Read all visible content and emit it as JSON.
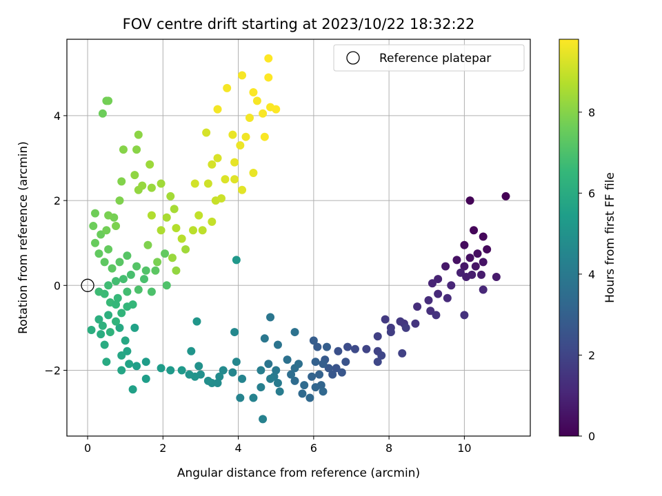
{
  "chart_data": {
    "type": "scatter",
    "title": "FOV centre drift starting at 2023/10/22 18:32:22",
    "xlabel": "Angular distance from reference (arcmin)",
    "ylabel": "Rotation from reference (arcmin)",
    "xlim": [
      -0.55,
      11.75
    ],
    "ylim": [
      -3.55,
      5.8
    ],
    "xticks": [
      "0",
      "2",
      "4",
      "6",
      "8",
      "10"
    ],
    "yticks": [
      "−2",
      "0",
      "2",
      "4"
    ],
    "grid": true,
    "legend": {
      "placement": "top-right",
      "entries": [
        "Reference platepar"
      ]
    },
    "reference_point": {
      "x": 0,
      "y": 0
    },
    "colorbar": {
      "label": "Hours from first FF file",
      "colormap": "viridis",
      "range": [
        0,
        9.8
      ],
      "ticks": [
        "0",
        "2",
        "4",
        "6",
        "8"
      ]
    },
    "series": [
      {
        "points": [
          [
            11.1,
            2.1,
            0.02
          ],
          [
            10.15,
            2.0,
            0.1
          ],
          [
            10.25,
            1.3,
            0.15
          ],
          [
            10.5,
            1.15,
            0.2
          ],
          [
            10.6,
            0.85,
            0.25
          ],
          [
            10.0,
            0.95,
            0.3
          ],
          [
            10.35,
            0.75,
            0.35
          ],
          [
            10.15,
            0.65,
            0.4
          ],
          [
            9.8,
            0.6,
            0.45
          ],
          [
            10.5,
            0.55,
            0.5
          ],
          [
            10.3,
            0.45,
            0.55
          ],
          [
            10.0,
            0.45,
            0.6
          ],
          [
            9.5,
            0.45,
            0.65
          ],
          [
            10.85,
            0.2,
            0.7
          ],
          [
            10.45,
            0.25,
            0.75
          ],
          [
            10.2,
            0.25,
            0.8
          ],
          [
            10.05,
            0.2,
            0.85
          ],
          [
            9.9,
            0.3,
            0.9
          ],
          [
            9.3,
            0.15,
            0.95
          ],
          [
            9.15,
            0.05,
            1.0
          ],
          [
            9.65,
            0.0,
            1.05
          ],
          [
            10.5,
            -0.1,
            1.1
          ],
          [
            9.3,
            -0.2,
            1.15
          ],
          [
            9.55,
            -0.3,
            1.2
          ],
          [
            9.05,
            -0.35,
            1.25
          ],
          [
            8.75,
            -0.5,
            1.3
          ],
          [
            9.1,
            -0.6,
            1.35
          ],
          [
            10.0,
            -0.7,
            1.4
          ],
          [
            9.25,
            -0.7,
            1.45
          ],
          [
            8.7,
            -0.9,
            1.5
          ],
          [
            8.4,
            -0.9,
            1.55
          ],
          [
            8.3,
            -0.85,
            1.6
          ],
          [
            7.9,
            -0.8,
            1.65
          ],
          [
            8.05,
            -1.0,
            1.7
          ],
          [
            8.45,
            -1.0,
            1.75
          ],
          [
            8.05,
            -1.1,
            1.8
          ],
          [
            7.7,
            -1.2,
            1.85
          ],
          [
            8.35,
            -1.6,
            1.9
          ],
          [
            7.7,
            -1.55,
            1.95
          ],
          [
            7.4,
            -1.5,
            2.0
          ],
          [
            7.8,
            -1.65,
            2.05
          ],
          [
            7.7,
            -1.8,
            2.1
          ],
          [
            7.1,
            -1.5,
            2.2
          ],
          [
            6.9,
            -1.45,
            2.3
          ],
          [
            6.65,
            -1.55,
            2.4
          ],
          [
            6.85,
            -1.8,
            2.5
          ],
          [
            6.6,
            -1.95,
            2.55
          ],
          [
            6.75,
            -2.05,
            2.6
          ],
          [
            6.5,
            -2.1,
            2.65
          ],
          [
            6.4,
            -1.95,
            2.7
          ],
          [
            6.3,
            -1.75,
            2.75
          ],
          [
            6.1,
            -1.45,
            2.8
          ],
          [
            6.0,
            -1.3,
            2.85
          ],
          [
            6.35,
            -1.45,
            2.9
          ],
          [
            6.25,
            -1.85,
            2.95
          ],
          [
            6.05,
            -1.8,
            3.0
          ],
          [
            6.15,
            -2.1,
            3.05
          ],
          [
            5.95,
            -2.15,
            3.1
          ],
          [
            6.2,
            -2.35,
            3.15
          ],
          [
            6.05,
            -2.4,
            3.2
          ],
          [
            6.25,
            -2.5,
            3.25
          ],
          [
            5.9,
            -2.65,
            3.3
          ],
          [
            5.7,
            -2.55,
            3.35
          ],
          [
            5.75,
            -2.35,
            3.4
          ],
          [
            5.5,
            -2.25,
            3.45
          ],
          [
            5.4,
            -2.1,
            3.5
          ],
          [
            5.5,
            -1.95,
            3.55
          ],
          [
            5.6,
            -1.85,
            3.6
          ],
          [
            5.3,
            -1.75,
            3.65
          ],
          [
            5.5,
            -1.1,
            3.7
          ],
          [
            5.05,
            -1.4,
            3.75
          ],
          [
            4.8,
            -1.85,
            3.8
          ],
          [
            4.85,
            -0.75,
            3.85
          ],
          [
            4.7,
            -1.25,
            3.9
          ],
          [
            5.0,
            -2.0,
            3.95
          ],
          [
            4.95,
            -2.15,
            4.0
          ],
          [
            5.05,
            -2.3,
            4.05
          ],
          [
            5.1,
            -2.5,
            4.1
          ],
          [
            4.85,
            -2.2,
            4.15
          ],
          [
            4.6,
            -2.0,
            4.2
          ],
          [
            4.6,
            -2.4,
            4.25
          ],
          [
            4.65,
            -3.15,
            4.3
          ],
          [
            4.4,
            -2.65,
            4.35
          ],
          [
            4.05,
            -2.65,
            4.4
          ],
          [
            4.1,
            -2.2,
            4.45
          ],
          [
            3.85,
            -2.05,
            4.5
          ],
          [
            3.95,
            -1.8,
            4.55
          ],
          [
            3.9,
            -1.1,
            4.6
          ],
          [
            3.6,
            -2.0,
            4.65
          ],
          [
            3.5,
            -2.15,
            4.7
          ],
          [
            3.45,
            -2.3,
            4.75
          ],
          [
            3.3,
            -2.3,
            4.8
          ],
          [
            3.2,
            -2.25,
            4.85
          ],
          [
            3.0,
            -2.1,
            4.9
          ],
          [
            2.95,
            -1.9,
            4.95
          ],
          [
            2.85,
            -2.15,
            5.0
          ],
          [
            2.7,
            -2.1,
            5.05
          ],
          [
            2.75,
            -1.55,
            5.1
          ],
          [
            2.9,
            -0.85,
            5.15
          ],
          [
            3.95,
            0.6,
            5.2
          ],
          [
            2.5,
            -2.0,
            5.25
          ],
          [
            2.2,
            -2.0,
            5.3
          ],
          [
            1.95,
            -1.95,
            5.35
          ],
          [
            1.55,
            -1.8,
            5.4
          ],
          [
            1.55,
            -2.2,
            5.45
          ],
          [
            1.3,
            -1.9,
            5.5
          ],
          [
            1.2,
            -2.45,
            5.55
          ],
          [
            1.25,
            -1.0,
            5.6
          ],
          [
            1.1,
            -1.85,
            5.65
          ],
          [
            1.05,
            -1.55,
            5.7
          ],
          [
            0.9,
            -2.0,
            5.75
          ],
          [
            0.9,
            -1.65,
            5.8
          ],
          [
            1.0,
            -1.3,
            5.85
          ],
          [
            0.85,
            -1.0,
            5.9
          ],
          [
            0.5,
            -1.8,
            5.95
          ],
          [
            0.45,
            -1.4,
            6.0
          ],
          [
            0.35,
            -1.15,
            6.05
          ],
          [
            0.1,
            -1.05,
            6.1
          ],
          [
            0.3,
            -0.8,
            6.15
          ],
          [
            0.55,
            -0.7,
            6.2
          ],
          [
            0.4,
            -0.95,
            6.25
          ],
          [
            0.6,
            -1.1,
            6.3
          ],
          [
            0.75,
            -0.85,
            6.35
          ],
          [
            0.9,
            -0.65,
            6.4
          ],
          [
            1.05,
            -0.5,
            6.45
          ],
          [
            1.2,
            -0.45,
            6.5
          ],
          [
            0.8,
            -0.3,
            6.55
          ],
          [
            0.6,
            -0.4,
            6.6
          ],
          [
            0.45,
            -0.2,
            6.65
          ],
          [
            0.3,
            -0.15,
            6.7
          ],
          [
            0.55,
            0.0,
            6.75
          ],
          [
            0.75,
            0.1,
            6.8
          ],
          [
            0.95,
            0.15,
            6.85
          ],
          [
            1.15,
            0.25,
            6.9
          ],
          [
            1.5,
            0.15,
            6.95
          ],
          [
            1.7,
            -0.15,
            7.0
          ],
          [
            2.1,
            0.0,
            7.05
          ],
          [
            1.55,
            0.35,
            7.1
          ],
          [
            1.3,
            0.45,
            7.15
          ],
          [
            1.05,
            0.7,
            7.2
          ],
          [
            0.85,
            0.55,
            7.25
          ],
          [
            0.65,
            0.4,
            7.3
          ],
          [
            0.45,
            0.55,
            7.35
          ],
          [
            0.3,
            0.75,
            7.4
          ],
          [
            0.55,
            0.85,
            7.45
          ],
          [
            0.2,
            1.0,
            7.5
          ],
          [
            0.35,
            1.2,
            7.55
          ],
          [
            0.15,
            1.4,
            7.6
          ],
          [
            0.2,
            1.7,
            7.65
          ],
          [
            0.5,
            1.3,
            7.7
          ],
          [
            0.7,
            1.6,
            7.75
          ],
          [
            0.55,
            1.65,
            7.8
          ],
          [
            0.75,
            1.4,
            7.85
          ],
          [
            0.85,
            2.0,
            7.9
          ],
          [
            0.9,
            2.45,
            7.95
          ],
          [
            0.95,
            3.2,
            8.0
          ],
          [
            1.3,
            3.2,
            8.05
          ],
          [
            1.35,
            3.55,
            8.1
          ],
          [
            1.25,
            2.6,
            8.15
          ],
          [
            1.35,
            2.25,
            8.2
          ],
          [
            1.45,
            2.35,
            8.25
          ],
          [
            1.7,
            2.3,
            8.3
          ],
          [
            1.65,
            2.85,
            8.35
          ],
          [
            1.95,
            2.4,
            8.4
          ],
          [
            2.2,
            2.1,
            8.45
          ],
          [
            2.3,
            1.8,
            8.5
          ],
          [
            2.1,
            1.6,
            8.55
          ],
          [
            1.95,
            1.3,
            8.6
          ],
          [
            1.7,
            1.65,
            8.65
          ],
          [
            2.35,
            1.35,
            8.7
          ],
          [
            2.5,
            1.1,
            8.75
          ],
          [
            2.8,
            1.3,
            8.8
          ],
          [
            3.05,
            1.3,
            8.85
          ],
          [
            2.95,
            1.65,
            8.9
          ],
          [
            3.3,
            1.5,
            8.95
          ],
          [
            3.4,
            2.0,
            9.0
          ],
          [
            3.55,
            2.05,
            9.05
          ],
          [
            3.2,
            2.4,
            9.1
          ],
          [
            2.85,
            2.4,
            9.15
          ],
          [
            3.3,
            2.85,
            9.2
          ],
          [
            3.45,
            3.0,
            9.25
          ],
          [
            3.65,
            2.5,
            9.3
          ],
          [
            3.9,
            2.5,
            9.35
          ],
          [
            4.1,
            2.25,
            9.4
          ],
          [
            3.9,
            2.9,
            9.45
          ],
          [
            3.85,
            3.55,
            9.5
          ],
          [
            4.05,
            3.3,
            9.55
          ],
          [
            4.2,
            3.5,
            9.6
          ],
          [
            4.3,
            3.95,
            9.65
          ],
          [
            4.5,
            4.35,
            9.7
          ],
          [
            4.65,
            4.05,
            9.72
          ],
          [
            4.7,
            3.5,
            9.74
          ],
          [
            4.85,
            4.2,
            9.76
          ],
          [
            5.0,
            4.15,
            9.78
          ],
          [
            4.8,
            4.9,
            9.8
          ],
          [
            4.8,
            5.35,
            9.8
          ],
          [
            4.4,
            4.55,
            9.75
          ],
          [
            3.45,
            4.15,
            9.65
          ],
          [
            3.7,
            4.65,
            9.68
          ],
          [
            4.1,
            4.95,
            9.7
          ],
          [
            0.4,
            4.05,
            7.6
          ],
          [
            0.5,
            4.35,
            7.7
          ],
          [
            0.55,
            4.35,
            7.72
          ],
          [
            4.4,
            2.65,
            9.5
          ],
          [
            3.15,
            3.6,
            9.2
          ],
          [
            2.25,
            0.65,
            8.3
          ],
          [
            2.6,
            0.85,
            8.4
          ],
          [
            2.35,
            0.35,
            8.2
          ],
          [
            1.85,
            0.55,
            7.8
          ],
          [
            1.6,
            0.95,
            7.9
          ],
          [
            2.05,
            0.75,
            7.4
          ],
          [
            1.8,
            0.35,
            7.3
          ],
          [
            1.35,
            -0.1,
            7.0
          ],
          [
            1.05,
            -0.15,
            6.8
          ],
          [
            0.75,
            -0.45,
            6.5
          ]
        ]
      }
    ]
  }
}
